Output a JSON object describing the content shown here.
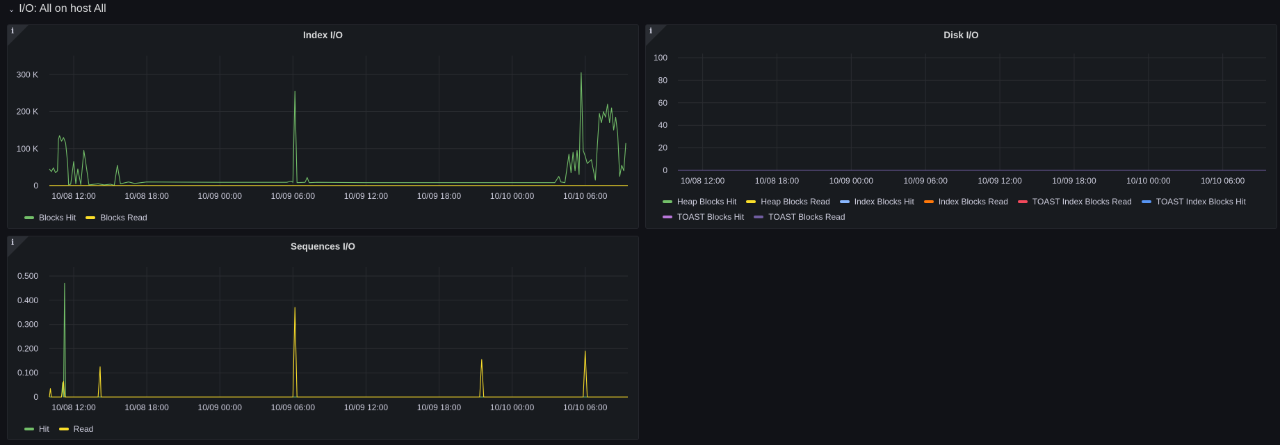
{
  "row": {
    "title": "I/O: All on host All"
  },
  "colors": {
    "green": "#73bf69",
    "yellow": "#fade2a",
    "lightblue": "#8ab8ff",
    "orange": "#ff780a",
    "red": "#f2495c",
    "blue": "#5794f2",
    "pink": "#b877d9",
    "purple": "#705da0",
    "grid": "#2a2c31",
    "text": "#ccccdc"
  },
  "panels": {
    "index_io": {
      "title": "Index I/O",
      "legend": [
        {
          "label": "Blocks Hit",
          "color": "#73bf69"
        },
        {
          "label": "Blocks Read",
          "color": "#fade2a"
        }
      ]
    },
    "disk_io": {
      "title": "Disk I/O",
      "legend": [
        {
          "label": "Heap Blocks Hit",
          "color": "#73bf69"
        },
        {
          "label": "Heap Blocks Read",
          "color": "#fade2a"
        },
        {
          "label": "Index Blocks Hit",
          "color": "#8ab8ff"
        },
        {
          "label": "Index Blocks Read",
          "color": "#ff780a"
        },
        {
          "label": "TOAST Index Blocks Read",
          "color": "#f2495c"
        },
        {
          "label": "TOAST Index Blocks Hit",
          "color": "#5794f2"
        },
        {
          "label": "TOAST Blocks Hit",
          "color": "#b877d9"
        },
        {
          "label": "TOAST Blocks Read",
          "color": "#705da0"
        }
      ]
    },
    "sequences_io": {
      "title": "Sequences I/O",
      "legend": [
        {
          "label": "Hit",
          "color": "#73bf69"
        },
        {
          "label": "Read",
          "color": "#fade2a"
        }
      ]
    }
  },
  "chart_data": [
    {
      "id": "index_io",
      "type": "line",
      "title": "Index I/O",
      "x_ticks": [
        "10/08 12:00",
        "10/08 18:00",
        "10/09 00:00",
        "10/09 06:00",
        "10/09 12:00",
        "10/09 18:00",
        "10/10 00:00",
        "10/10 06:00"
      ],
      "x_range": [
        "10/08 10:00",
        "10/10 09:30"
      ],
      "y_ticks": [
        "0",
        "100 K",
        "200 K",
        "300 K"
      ],
      "y_tick_values": [
        0,
        100000,
        200000,
        300000
      ],
      "ylim": [
        0,
        340000
      ],
      "series": [
        {
          "name": "Blocks Hit",
          "color": "#73bf69",
          "points": [
            [
              "10/08 10:00",
              45000
            ],
            [
              "10/08 10:10",
              38000
            ],
            [
              "10/08 10:20",
              48000
            ],
            [
              "10/08 10:30",
              35000
            ],
            [
              "10/08 10:40",
              40000
            ],
            [
              "10/08 10:45",
              125000
            ],
            [
              "10/08 10:50",
              135000
            ],
            [
              "10/08 11:00",
              120000
            ],
            [
              "10/08 11:10",
              130000
            ],
            [
              "10/08 11:20",
              115000
            ],
            [
              "10/08 11:30",
              60000
            ],
            [
              "10/08 11:35",
              2000
            ],
            [
              "10/08 11:45",
              4000
            ],
            [
              "10/08 12:00",
              65000
            ],
            [
              "10/08 12:10",
              5000
            ],
            [
              "10/08 12:20",
              45000
            ],
            [
              "10/08 12:35",
              3000
            ],
            [
              "10/08 12:50",
              95000
            ],
            [
              "10/08 13:00",
              60000
            ],
            [
              "10/08 13:15",
              2000
            ],
            [
              "10/08 14:00",
              5000
            ],
            [
              "10/08 14:30",
              2000
            ],
            [
              "10/08 15:00",
              4000
            ],
            [
              "10/08 15:20",
              1000
            ],
            [
              "10/08 15:35",
              55000
            ],
            [
              "10/08 15:50",
              5000
            ],
            [
              "10/08 16:30",
              10000
            ],
            [
              "10/08 17:00",
              6000
            ],
            [
              "10/08 18:00",
              10000
            ],
            [
              "10/09 00:00",
              9000
            ],
            [
              "10/09 05:30",
              9000
            ],
            [
              "10/09 05:50",
              12000
            ],
            [
              "10/09 06:00",
              9000
            ],
            [
              "10/09 06:10",
              255000
            ],
            [
              "10/09 06:20",
              8000
            ],
            [
              "10/09 07:00",
              9000
            ],
            [
              "10/09 07:10",
              22000
            ],
            [
              "10/09 07:20",
              8000
            ],
            [
              "10/09 08:00",
              9000
            ],
            [
              "10/09 12:00",
              8000
            ],
            [
              "10/10 00:00",
              8000
            ],
            [
              "10/10 03:30",
              8000
            ],
            [
              "10/10 03:50",
              25000
            ],
            [
              "10/10 04:00",
              10000
            ],
            [
              "10/10 04:20",
              8000
            ],
            [
              "10/10 04:40",
              85000
            ],
            [
              "10/10 04:50",
              35000
            ],
            [
              "10/10 05:00",
              90000
            ],
            [
              "10/10 05:10",
              40000
            ],
            [
              "10/10 05:20",
              95000
            ],
            [
              "10/10 05:30",
              30000
            ],
            [
              "10/10 05:40",
              305000
            ],
            [
              "10/10 05:50",
              95000
            ],
            [
              "10/10 06:00",
              80000
            ],
            [
              "10/10 06:10",
              60000
            ],
            [
              "10/10 06:30",
              70000
            ],
            [
              "10/10 06:50",
              15000
            ],
            [
              "10/10 07:00",
              110000
            ],
            [
              "10/10 07:10",
              195000
            ],
            [
              "10/10 07:20",
              170000
            ],
            [
              "10/10 07:30",
              200000
            ],
            [
              "10/10 07:40",
              185000
            ],
            [
              "10/10 07:50",
              220000
            ],
            [
              "10/10 08:00",
              170000
            ],
            [
              "10/10 08:10",
              210000
            ],
            [
              "10/10 08:20",
              150000
            ],
            [
              "10/10 08:30",
              185000
            ],
            [
              "10/10 08:40",
              140000
            ],
            [
              "10/10 08:50",
              25000
            ],
            [
              "10/10 09:00",
              55000
            ],
            [
              "10/10 09:10",
              40000
            ],
            [
              "10/10 09:20",
              115000
            ]
          ]
        },
        {
          "name": "Blocks Read",
          "color": "#fade2a",
          "points": [
            [
              "10/08 10:00",
              300
            ],
            [
              "10/10 09:30",
              300
            ]
          ]
        }
      ]
    },
    {
      "id": "disk_io",
      "type": "line",
      "title": "Disk I/O",
      "x_ticks": [
        "10/08 12:00",
        "10/08 18:00",
        "10/09 00:00",
        "10/09 06:00",
        "10/09 12:00",
        "10/09 18:00",
        "10/10 00:00",
        "10/10 06:00"
      ],
      "x_range": [
        "10/08 10:00",
        "10/10 09:30"
      ],
      "y_ticks": [
        "0",
        "20",
        "40",
        "60",
        "80",
        "100"
      ],
      "y_tick_values": [
        0,
        20,
        40,
        60,
        80,
        100
      ],
      "ylim": [
        0,
        100
      ],
      "series": [
        {
          "name": "Heap Blocks Hit",
          "color": "#73bf69",
          "points": [
            [
              "10/08 10:00",
              0
            ],
            [
              "10/10 09:30",
              0
            ]
          ]
        },
        {
          "name": "Heap Blocks Read",
          "color": "#fade2a",
          "points": [
            [
              "10/08 10:00",
              0
            ],
            [
              "10/10 09:30",
              0
            ]
          ]
        },
        {
          "name": "Index Blocks Hit",
          "color": "#8ab8ff",
          "points": [
            [
              "10/08 10:00",
              0
            ],
            [
              "10/10 09:30",
              0
            ]
          ]
        },
        {
          "name": "Index Blocks Read",
          "color": "#ff780a",
          "points": [
            [
              "10/08 10:00",
              0
            ],
            [
              "10/10 09:30",
              0
            ]
          ]
        },
        {
          "name": "TOAST Index Blocks Read",
          "color": "#f2495c",
          "points": [
            [
              "10/08 10:00",
              0
            ],
            [
              "10/10 09:30",
              0
            ]
          ]
        },
        {
          "name": "TOAST Index Blocks Hit",
          "color": "#5794f2",
          "points": [
            [
              "10/08 10:00",
              0
            ],
            [
              "10/10 09:30",
              0
            ]
          ]
        },
        {
          "name": "TOAST Blocks Hit",
          "color": "#b877d9",
          "points": [
            [
              "10/08 10:00",
              0
            ],
            [
              "10/10 09:30",
              0
            ]
          ]
        },
        {
          "name": "TOAST Blocks Read",
          "color": "#705da0",
          "points": [
            [
              "10/08 10:00",
              0
            ],
            [
              "10/10 09:30",
              0
            ]
          ]
        }
      ]
    },
    {
      "id": "sequences_io",
      "type": "line",
      "title": "Sequences I/O",
      "x_ticks": [
        "10/08 12:00",
        "10/08 18:00",
        "10/09 00:00",
        "10/09 06:00",
        "10/09 12:00",
        "10/09 18:00",
        "10/10 00:00",
        "10/10 06:00"
      ],
      "x_range": [
        "10/08 10:00",
        "10/10 09:30"
      ],
      "y_ticks": [
        "0",
        "0.100",
        "0.200",
        "0.300",
        "0.400",
        "0.500"
      ],
      "y_tick_values": [
        0,
        0.1,
        0.2,
        0.3,
        0.4,
        0.5
      ],
      "ylim": [
        0,
        0.52
      ],
      "series": [
        {
          "name": "Hit",
          "color": "#73bf69",
          "points": [
            [
              "10/08 10:00",
              0
            ],
            [
              "10/08 11:00",
              0
            ],
            [
              "10/08 11:05",
              0.06
            ],
            [
              "10/08 11:10",
              0
            ],
            [
              "10/08 11:15",
              0.47
            ],
            [
              "10/08 11:20",
              0
            ],
            [
              "10/10 09:30",
              0
            ]
          ]
        },
        {
          "name": "Read",
          "color": "#fade2a",
          "points": [
            [
              "10/08 10:00",
              0
            ],
            [
              "10/08 10:05",
              0.035
            ],
            [
              "10/08 10:10",
              0
            ],
            [
              "10/08 11:00",
              0
            ],
            [
              "10/08 11:10",
              0.065
            ],
            [
              "10/08 11:15",
              0
            ],
            [
              "10/08 14:00",
              0
            ],
            [
              "10/08 14:10",
              0.125
            ],
            [
              "10/08 14:15",
              0
            ],
            [
              "10/09 06:00",
              0
            ],
            [
              "10/09 06:10",
              0.37
            ],
            [
              "10/09 06:20",
              0
            ],
            [
              "10/09 21:20",
              0
            ],
            [
              "10/09 21:30",
              0.155
            ],
            [
              "10/09 21:40",
              0
            ],
            [
              "10/10 05:50",
              0
            ],
            [
              "10/10 06:00",
              0.19
            ],
            [
              "10/10 06:10",
              0
            ],
            [
              "10/10 09:30",
              0
            ]
          ]
        }
      ]
    }
  ]
}
